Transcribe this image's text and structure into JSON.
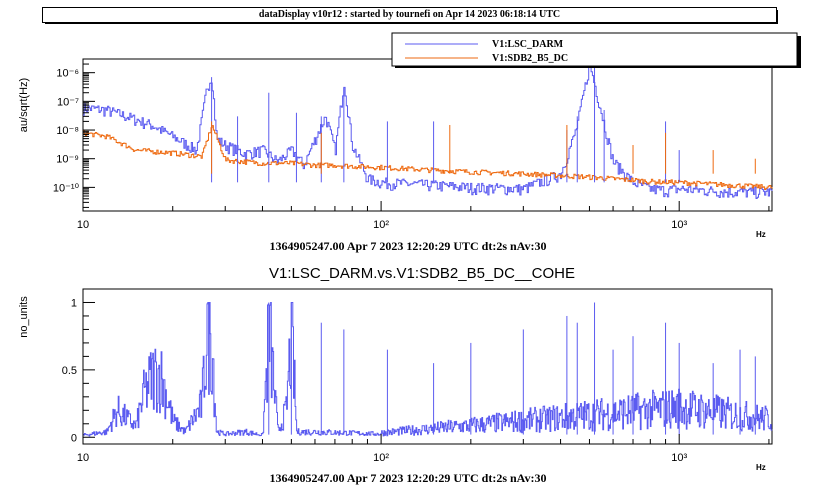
{
  "banner": "dataDisplay v10r12 : started by tournefi on Apr 14 2023 06:18:14 UTC",
  "colors": {
    "darm": "#5b5bf0",
    "sdb2": "#ee6a10"
  },
  "chart_data": [
    {
      "type": "line",
      "xlabel": "1364905247.00 Apr 7 2023 12:20:29 UTC dt:2s nAv:30",
      "xunit": "Hz",
      "ylabel": "au/sqrt(Hz)",
      "xscale": "log",
      "yscale": "log",
      "xlim": [
        10,
        2048
      ],
      "ylim": [
        1.5e-11,
        3e-06
      ],
      "xticklabels": [
        "10",
        "10²",
        "10³"
      ],
      "yticklabels": [
        "10⁻¹⁰",
        "10⁻⁹",
        "10⁻⁸",
        "10⁻⁷",
        "10⁻⁶"
      ],
      "legend_position": "top-right",
      "series": [
        {
          "name": "V1:LSC_DARM",
          "x": [
            10,
            12,
            14,
            17,
            20,
            24,
            26,
            27,
            28,
            30,
            35,
            40,
            45,
            50,
            55,
            60,
            65,
            70,
            75,
            80,
            90,
            100,
            150,
            200,
            300,
            400,
            450,
            500,
            600,
            700,
            800,
            900,
            1000,
            1500,
            2048
          ],
          "y": [
            6e-08,
            5e-08,
            3e-08,
            1.5e-08,
            6e-09,
            2e-09,
            3e-07,
            8e-07,
            5e-09,
            3e-09,
            1.5e-09,
            2e-09,
            8e-10,
            2e-09,
            6e-10,
            5e-09,
            3e-08,
            2e-09,
            5e-07,
            3e-09,
            2e-10,
            1.5e-10,
            1.2e-10,
            1e-10,
            9e-11,
            3e-10,
            1e-08,
            2e-06,
            8e-10,
            1.5e-10,
            9e-11,
            8e-11,
            9e-11,
            7e-11,
            7e-11
          ]
        },
        {
          "name": "V1:SDB2_B5_DC",
          "x": [
            10,
            12,
            15,
            20,
            25,
            27,
            30,
            40,
            50,
            60,
            70,
            80,
            100,
            150,
            200,
            300,
            400,
            500,
            600,
            700,
            800,
            1000,
            1500,
            2048
          ],
          "y": [
            8e-09,
            6e-09,
            2e-09,
            1.6e-09,
            1.2e-09,
            1.5e-08,
            9e-10,
            7e-10,
            7e-10,
            6e-10,
            6e-10,
            5.5e-10,
            5e-10,
            4e-10,
            3.5e-10,
            3e-10,
            2.6e-10,
            2.3e-10,
            2e-10,
            1.8e-10,
            1.6e-10,
            1.5e-10,
            1.2e-10,
            1e-10
          ]
        }
      ]
    },
    {
      "type": "line",
      "title": "V1:LSC_DARM.vs.V1:SDB2_B5_DC__COHE",
      "xlabel": "1364905247.00 Apr 7 2023 12:20:29 UTC dt:2s nAv:30",
      "xunit": "Hz",
      "ylabel": "no_units",
      "xscale": "log",
      "xlim": [
        10,
        2048
      ],
      "ylim": [
        -0.05,
        1.1
      ],
      "xticklabels": [
        "10",
        "10²",
        "10³"
      ],
      "yticklabels": [
        "0",
        "0.5",
        "1"
      ],
      "series": [
        {
          "x": [
            10,
            12,
            13,
            15,
            16,
            17,
            18,
            19,
            20,
            22,
            25,
            26,
            27,
            28,
            30,
            35,
            40,
            42,
            45,
            48,
            50,
            52,
            60,
            100,
            200,
            500,
            1000,
            2048
          ],
          "y": [
            0.02,
            0.05,
            0.25,
            0.1,
            0.4,
            0.55,
            0.6,
            0.4,
            0.15,
            0.05,
            0.3,
            1.0,
            0.95,
            0.05,
            0.03,
            0.05,
            0.02,
            1.0,
            0.05,
            0.25,
            1.0,
            0.05,
            0.05,
            0.03,
            0.08,
            0.15,
            0.2,
            0.12
          ]
        }
      ]
    }
  ],
  "legend": {
    "items": [
      "V1:LSC_DARM",
      "V1:SDB2_B5_DC"
    ]
  }
}
